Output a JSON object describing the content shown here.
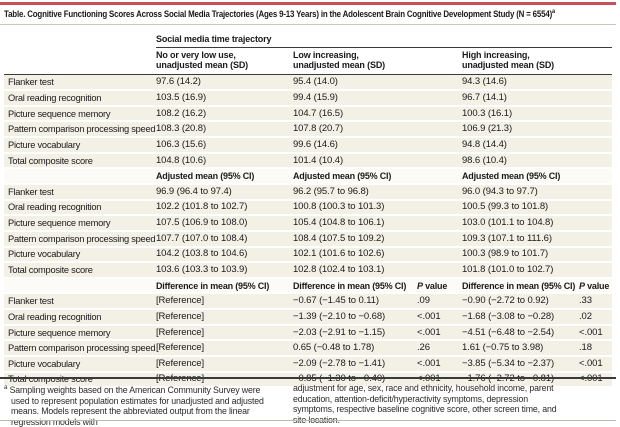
{
  "colors": {
    "accent_red": "#c74e5b",
    "row_beige": "#f3f0e6",
    "rule_dark": "#3a3a3a"
  },
  "header": {
    "title": "Table. Cognitive Functioning Scores Across Social Media Trajectories (Ages 9-13 Years) in the Adolescent Brain Cognitive Development Study (N = 6554)",
    "title_marker": "a"
  },
  "table": {
    "spanner_label": "Social media time trajectory",
    "p_label_italic": "P",
    "p_label_rest": " value",
    "top_headers": [
      {
        "line1": "No or very low use,",
        "line2": "unadjusted mean (SD)"
      },
      {
        "line1": "Low increasing,",
        "line2": "unadjusted mean (SD)"
      },
      {
        "line1": "High increasing,",
        "line2": "unadjusted mean (SD)"
      }
    ],
    "sections": [
      {
        "subheader": null,
        "rows": [
          {
            "label": "Flanker test",
            "cells": [
              "97.6 (14.2)",
              "95.4 (14.0)",
              "94.3 (14.6)"
            ]
          },
          {
            "label": "Oral reading recognition",
            "cells": [
              "103.5 (16.9)",
              "99.4 (15.9)",
              "96.7 (14.1)"
            ]
          },
          {
            "label": "Picture sequence memory",
            "cells": [
              "108.2 (16.2)",
              "104.7 (16.5)",
              "100.3 (16.1)"
            ]
          },
          {
            "label": "Pattern comparison processing speed",
            "cells": [
              "108.3 (20.8)",
              "107.8 (20.7)",
              "106.9 (21.3)"
            ]
          },
          {
            "label": "Picture vocabulary",
            "cells": [
              "106.3 (15.6)",
              "99.6 (14.6)",
              "94.8 (14.4)"
            ]
          },
          {
            "label": "Total composite score",
            "cells": [
              "104.8 (10.6)",
              "101.4 (10.4)",
              "98.6 (10.4)"
            ]
          }
        ]
      },
      {
        "subheader": "Adjusted mean (95% CI)",
        "rows": [
          {
            "label": "Flanker test",
            "cells": [
              "96.9 (96.4 to 97.4)",
              "96.2 (95.7 to 96.8)",
              "96.0 (94.3 to 97.7)"
            ]
          },
          {
            "label": "Oral reading recognition",
            "cells": [
              "102.2 (101.8 to 102.7)",
              "100.8 (100.3 to 101.3)",
              "100.5 (99.3 to 101.8)"
            ]
          },
          {
            "label": "Picture sequence memory",
            "cells": [
              "107.5 (106.9 to 108.0)",
              "105.4 (104.8 to 106.1)",
              "103.0 (101.1 to 104.8)"
            ]
          },
          {
            "label": "Pattern comparison processing speed",
            "cells": [
              "107.7 (107.0 to 108.4)",
              "108.4 (107.5 to 109.2)",
              "109.3 (107.1 to 111.6)"
            ]
          },
          {
            "label": "Picture vocabulary",
            "cells": [
              "104.2 (103.8 to 104.6)",
              "102.1 (101.6 to 102.6)",
              "100.3 (98.9 to 101.7)"
            ]
          },
          {
            "label": "Total composite score",
            "cells": [
              "103.6 (103.3 to 103.9)",
              "102.8 (102.4 to 103.1)",
              "101.8 (101.0 to 102.7)"
            ]
          }
        ]
      },
      {
        "subheader": "Difference in mean (95% CI)",
        "with_p": true,
        "rows": [
          {
            "label": "Flanker test",
            "cells": [
              "[Reference]",
              "−0.67 (−1.45 to 0.11)",
              ".09",
              "−0.90 (−2.72 to 0.92)",
              ".33"
            ]
          },
          {
            "label": "Oral reading recognition",
            "cells": [
              "[Reference]",
              "−1.39 (−2.10 to −0.68)",
              "<.001",
              "−1.68 (−3.08 to −0.28)",
              ".02"
            ]
          },
          {
            "label": "Picture sequence memory",
            "cells": [
              "[Reference]",
              "−2.03 (−2.91 to −1.15)",
              "<.001",
              "−4.51 (−6.48 to −2.54)",
              "<.001"
            ]
          },
          {
            "label": "Pattern comparison processing speed",
            "cells": [
              "[Reference]",
              "0.65 (−0.48 to 1.78)",
              ".26",
              "1.61 (−0.75 to 3.98)",
              ".18"
            ]
          },
          {
            "label": "Picture vocabulary",
            "cells": [
              "[Reference]",
              "−2.09 (−2.78 to −1.41)",
              "<.001",
              "−3.85 (−5.34 to −2.37)",
              "<.001"
            ]
          },
          {
            "label": "Total composite score",
            "cells": [
              "[Reference]",
              "−0.85 (−1.30 to −0.40)",
              "<.001",
              "−1.76 (−2.72 to −0.81)",
              "<.001"
            ]
          }
        ]
      }
    ]
  },
  "footnote": {
    "marker": "a",
    "text_left": "Sampling weights based on the American Community Survey were used to represent population estimates for unadjusted and adjusted means. Models represent the abbreviated output from the linear regression models with",
    "text_right": "adjustment for age, sex, race and ethnicity, household income, parent education, attention-deficit/hyperactivity symptoms, depression symptoms, respective baseline cognitive score, other screen time, and site location."
  }
}
